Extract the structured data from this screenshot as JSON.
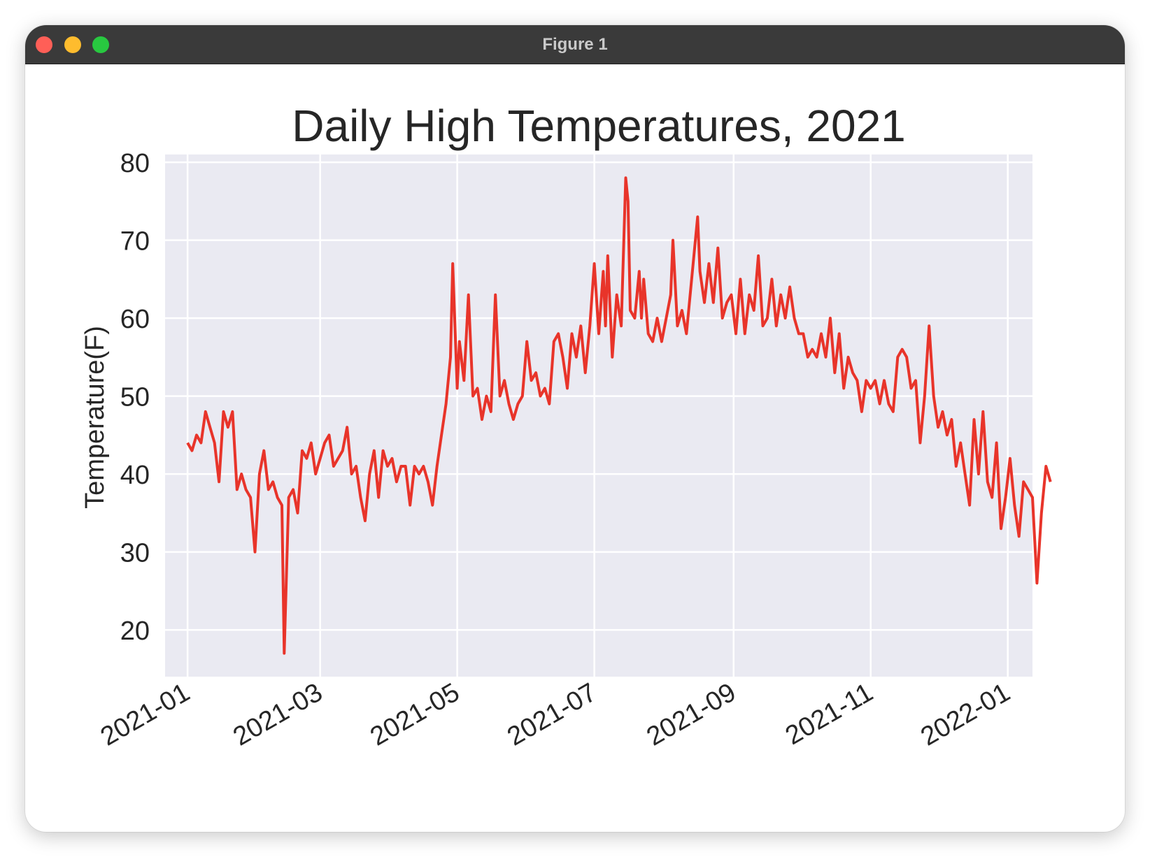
{
  "window": {
    "title": "Figure 1",
    "buttons": [
      "close",
      "minimize",
      "maximize"
    ]
  },
  "colors": {
    "line": "#e8342a",
    "plot_bg": "#eaeaf2",
    "grid": "#ffffff",
    "text": "#262626",
    "titlebar": "#3a3a3a"
  },
  "chart_data": {
    "type": "line",
    "title": "Daily High Temperatures, 2021",
    "xlabel": "",
    "ylabel": "Temperature(F)",
    "ylim": [
      14.0,
      81.0
    ],
    "xlim": [
      "2020-12-22",
      "2022-01-12"
    ],
    "grid": true,
    "style": "seaborn",
    "yticks": [
      20,
      30,
      40,
      50,
      60,
      70,
      80
    ],
    "xticks": [
      "2021-01-01",
      "2021-03-01",
      "2021-05-01",
      "2021-07-01",
      "2021-09-01",
      "2021-11-01",
      "2022-01-01"
    ],
    "xtick_labels": [
      "2021-01",
      "2021-03",
      "2021-05",
      "2021-07",
      "2021-09",
      "2021-11",
      "2022-01"
    ],
    "series": [
      {
        "color": "#e8342a",
        "points": [
          [
            "2021-01-01",
            44
          ],
          [
            "2021-01-03",
            43
          ],
          [
            "2021-01-05",
            45
          ],
          [
            "2021-01-07",
            44
          ],
          [
            "2021-01-09",
            48
          ],
          [
            "2021-01-11",
            46
          ],
          [
            "2021-01-13",
            44
          ],
          [
            "2021-01-15",
            39
          ],
          [
            "2021-01-17",
            48
          ],
          [
            "2021-01-19",
            46
          ],
          [
            "2021-01-21",
            48
          ],
          [
            "2021-01-23",
            38
          ],
          [
            "2021-01-25",
            40
          ],
          [
            "2021-01-27",
            38
          ],
          [
            "2021-01-29",
            37
          ],
          [
            "2021-01-31",
            30
          ],
          [
            "2021-02-02",
            40
          ],
          [
            "2021-02-04",
            43
          ],
          [
            "2021-02-06",
            38
          ],
          [
            "2021-02-08",
            39
          ],
          [
            "2021-02-10",
            37
          ],
          [
            "2021-02-12",
            36
          ],
          [
            "2021-02-13",
            17
          ],
          [
            "2021-02-15",
            37
          ],
          [
            "2021-02-17",
            38
          ],
          [
            "2021-02-19",
            35
          ],
          [
            "2021-02-21",
            43
          ],
          [
            "2021-02-23",
            42
          ],
          [
            "2021-02-25",
            44
          ],
          [
            "2021-02-27",
            40
          ],
          [
            "2021-03-01",
            42
          ],
          [
            "2021-03-03",
            44
          ],
          [
            "2021-03-05",
            45
          ],
          [
            "2021-03-07",
            41
          ],
          [
            "2021-03-09",
            42
          ],
          [
            "2021-03-11",
            43
          ],
          [
            "2021-03-13",
            46
          ],
          [
            "2021-03-15",
            40
          ],
          [
            "2021-03-17",
            41
          ],
          [
            "2021-03-19",
            37
          ],
          [
            "2021-03-21",
            34
          ],
          [
            "2021-03-23",
            40
          ],
          [
            "2021-03-25",
            43
          ],
          [
            "2021-03-27",
            37
          ],
          [
            "2021-03-29",
            43
          ],
          [
            "2021-03-31",
            41
          ],
          [
            "2021-04-02",
            42
          ],
          [
            "2021-04-04",
            39
          ],
          [
            "2021-04-06",
            41
          ],
          [
            "2021-04-08",
            41
          ],
          [
            "2021-04-10",
            36
          ],
          [
            "2021-04-12",
            41
          ],
          [
            "2021-04-14",
            40
          ],
          [
            "2021-04-16",
            41
          ],
          [
            "2021-04-18",
            39
          ],
          [
            "2021-04-20",
            36
          ],
          [
            "2021-04-22",
            41
          ],
          [
            "2021-04-24",
            45
          ],
          [
            "2021-04-26",
            49
          ],
          [
            "2021-04-28",
            55
          ],
          [
            "2021-04-29",
            67
          ],
          [
            "2021-05-01",
            51
          ],
          [
            "2021-05-02",
            57
          ],
          [
            "2021-05-04",
            52
          ],
          [
            "2021-05-06",
            63
          ],
          [
            "2021-05-08",
            50
          ],
          [
            "2021-05-10",
            51
          ],
          [
            "2021-05-12",
            47
          ],
          [
            "2021-05-14",
            50
          ],
          [
            "2021-05-16",
            48
          ],
          [
            "2021-05-18",
            63
          ],
          [
            "2021-05-20",
            50
          ],
          [
            "2021-05-22",
            52
          ],
          [
            "2021-05-24",
            49
          ],
          [
            "2021-05-26",
            47
          ],
          [
            "2021-05-28",
            49
          ],
          [
            "2021-05-30",
            50
          ],
          [
            "2021-06-01",
            57
          ],
          [
            "2021-06-03",
            52
          ],
          [
            "2021-06-05",
            53
          ],
          [
            "2021-06-07",
            50
          ],
          [
            "2021-06-09",
            51
          ],
          [
            "2021-06-11",
            49
          ],
          [
            "2021-06-13",
            57
          ],
          [
            "2021-06-15",
            58
          ],
          [
            "2021-06-17",
            55
          ],
          [
            "2021-06-19",
            51
          ],
          [
            "2021-06-21",
            58
          ],
          [
            "2021-06-23",
            55
          ],
          [
            "2021-06-25",
            59
          ],
          [
            "2021-06-27",
            53
          ],
          [
            "2021-06-29",
            59
          ],
          [
            "2021-07-01",
            67
          ],
          [
            "2021-07-03",
            58
          ],
          [
            "2021-07-05",
            66
          ],
          [
            "2021-07-06",
            59
          ],
          [
            "2021-07-07",
            68
          ],
          [
            "2021-07-09",
            55
          ],
          [
            "2021-07-11",
            63
          ],
          [
            "2021-07-13",
            59
          ],
          [
            "2021-07-15",
            78
          ],
          [
            "2021-07-16",
            75
          ],
          [
            "2021-07-17",
            61
          ],
          [
            "2021-07-19",
            60
          ],
          [
            "2021-07-21",
            66
          ],
          [
            "2021-07-22",
            60
          ],
          [
            "2021-07-23",
            65
          ],
          [
            "2021-07-25",
            58
          ],
          [
            "2021-07-27",
            57
          ],
          [
            "2021-07-29",
            60
          ],
          [
            "2021-07-31",
            57
          ],
          [
            "2021-08-02",
            60
          ],
          [
            "2021-08-04",
            63
          ],
          [
            "2021-08-05",
            70
          ],
          [
            "2021-08-07",
            59
          ],
          [
            "2021-08-09",
            61
          ],
          [
            "2021-08-11",
            58
          ],
          [
            "2021-08-13",
            64
          ],
          [
            "2021-08-15",
            70
          ],
          [
            "2021-08-16",
            73
          ],
          [
            "2021-08-17",
            66
          ],
          [
            "2021-08-19",
            62
          ],
          [
            "2021-08-21",
            67
          ],
          [
            "2021-08-23",
            62
          ],
          [
            "2021-08-25",
            69
          ],
          [
            "2021-08-27",
            60
          ],
          [
            "2021-08-29",
            62
          ],
          [
            "2021-08-31",
            63
          ],
          [
            "2021-09-02",
            58
          ],
          [
            "2021-09-04",
            65
          ],
          [
            "2021-09-06",
            58
          ],
          [
            "2021-09-08",
            63
          ],
          [
            "2021-09-10",
            61
          ],
          [
            "2021-09-12",
            68
          ],
          [
            "2021-09-14",
            59
          ],
          [
            "2021-09-16",
            60
          ],
          [
            "2021-09-18",
            65
          ],
          [
            "2021-09-20",
            59
          ],
          [
            "2021-09-22",
            63
          ],
          [
            "2021-09-24",
            60
          ],
          [
            "2021-09-26",
            64
          ],
          [
            "2021-09-28",
            60
          ],
          [
            "2021-09-30",
            58
          ],
          [
            "2021-10-02",
            58
          ],
          [
            "2021-10-04",
            55
          ],
          [
            "2021-10-06",
            56
          ],
          [
            "2021-10-08",
            55
          ],
          [
            "2021-10-10",
            58
          ],
          [
            "2021-10-12",
            55
          ],
          [
            "2021-10-14",
            60
          ],
          [
            "2021-10-16",
            53
          ],
          [
            "2021-10-18",
            58
          ],
          [
            "2021-10-20",
            51
          ],
          [
            "2021-10-22",
            55
          ],
          [
            "2021-10-24",
            53
          ],
          [
            "2021-10-26",
            52
          ],
          [
            "2021-10-28",
            48
          ],
          [
            "2021-10-30",
            52
          ],
          [
            "2021-11-01",
            51
          ],
          [
            "2021-11-03",
            52
          ],
          [
            "2021-11-05",
            49
          ],
          [
            "2021-11-07",
            52
          ],
          [
            "2021-11-09",
            49
          ],
          [
            "2021-11-11",
            48
          ],
          [
            "2021-11-13",
            55
          ],
          [
            "2021-11-15",
            56
          ],
          [
            "2021-11-17",
            55
          ],
          [
            "2021-11-19",
            51
          ],
          [
            "2021-11-21",
            52
          ],
          [
            "2021-11-23",
            44
          ],
          [
            "2021-11-25",
            50
          ],
          [
            "2021-11-27",
            59
          ],
          [
            "2021-11-29",
            50
          ],
          [
            "2021-12-01",
            46
          ],
          [
            "2021-12-03",
            48
          ],
          [
            "2021-12-05",
            45
          ],
          [
            "2021-12-07",
            47
          ],
          [
            "2021-12-09",
            41
          ],
          [
            "2021-12-11",
            44
          ],
          [
            "2021-12-13",
            40
          ],
          [
            "2021-12-15",
            36
          ],
          [
            "2021-12-17",
            47
          ],
          [
            "2021-12-19",
            40
          ],
          [
            "2021-12-21",
            48
          ],
          [
            "2021-12-23",
            39
          ],
          [
            "2021-12-25",
            37
          ],
          [
            "2021-12-27",
            44
          ],
          [
            "2021-12-29",
            33
          ],
          [
            "2021-12-31",
            37
          ],
          [
            "2022-01-02",
            42
          ],
          [
            "2022-01-04",
            36
          ],
          [
            "2022-01-06",
            32
          ],
          [
            "2022-01-08",
            39
          ],
          [
            "2022-01-10",
            38
          ],
          [
            "2022-01-12",
            37
          ],
          [
            "2022-01-14",
            26
          ],
          [
            "2022-01-16",
            35
          ],
          [
            "2022-01-18",
            41
          ],
          [
            "2022-01-20",
            39
          ]
        ]
      }
    ]
  }
}
